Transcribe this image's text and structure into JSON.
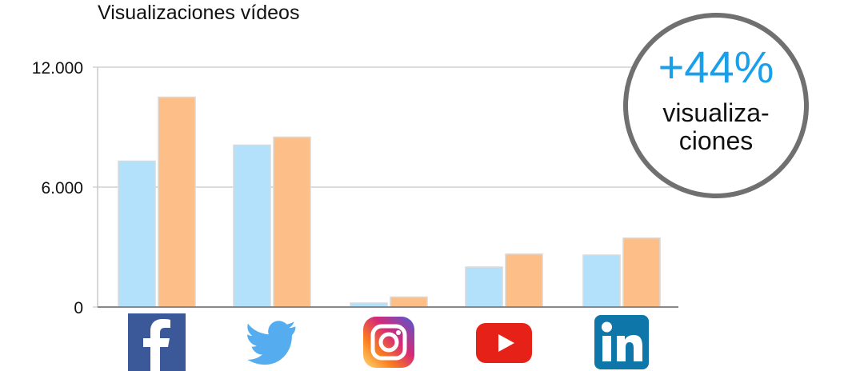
{
  "chart_data": {
    "type": "bar",
    "title": "Visualizaciones vídeos",
    "categories": [
      "facebook-icon",
      "twitter-icon",
      "instagram-icon",
      "youtube-icon",
      "linkedin-icon"
    ],
    "series": [
      {
        "values": [
          7300,
          8100,
          200,
          2000,
          2600
        ]
      },
      {
        "values": [
          10500,
          8500,
          500,
          2650,
          3450
        ]
      }
    ],
    "ylim": [
      0,
      12000
    ],
    "yticks": [
      0,
      6000,
      12000
    ],
    "ytick_labels": [
      "0",
      "6.000",
      "12.000"
    ],
    "grid": true,
    "colors": {
      "series1": "#b3e0fa",
      "series2": "#fdbf87",
      "grid": "#c8c8c8",
      "axis": "#888888"
    }
  },
  "badge": {
    "value": "+44%",
    "label": "visualiza-ciones",
    "value_color": "#1a9fea",
    "border_color": "#707070"
  },
  "icons": {
    "facebook": "#3b5998",
    "twitter": "#55acee",
    "youtube": "#e62117",
    "linkedin": "#0e76a8"
  }
}
